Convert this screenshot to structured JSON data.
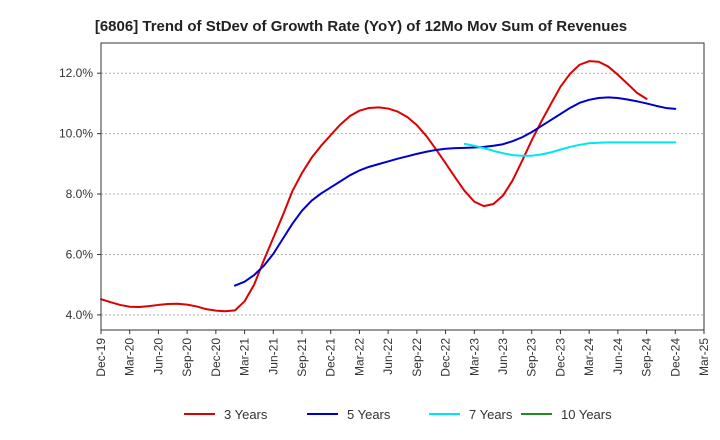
{
  "chart_data": {
    "type": "line",
    "title": "[6806]  Trend of StDev of Growth Rate (YoY) of 12Mo Mov Sum of Revenues",
    "xlabel": "",
    "ylabel": "",
    "x_ticks": [
      "Dec-19",
      "Mar-20",
      "Jun-20",
      "Sep-20",
      "Dec-20",
      "Mar-21",
      "Jun-21",
      "Sep-21",
      "Dec-21",
      "Mar-22",
      "Jun-22",
      "Sep-22",
      "Dec-22",
      "Mar-23",
      "Jun-23",
      "Sep-23",
      "Dec-23",
      "Mar-24",
      "Jun-24",
      "Sep-24",
      "Dec-24",
      "Mar-25"
    ],
    "y_ticks": [
      "4.0%",
      "6.0%",
      "8.0%",
      "10.0%",
      "12.0%"
    ],
    "y_tick_values": [
      4,
      6,
      8,
      10,
      12
    ],
    "ylim": [
      3.5,
      13.0
    ],
    "x_range_months": [
      0,
      63
    ],
    "grid": "horizontal dashed",
    "legend_position": "bottom",
    "series": [
      {
        "name": "3 Years",
        "color": "#dd0000",
        "x_months": [
          0,
          1,
          2,
          3,
          4,
          5,
          6,
          7,
          8,
          9,
          10,
          11,
          12,
          13,
          14,
          15,
          16,
          17,
          18,
          19,
          20,
          21,
          22,
          23,
          24,
          25,
          26,
          27,
          28,
          29,
          30,
          31,
          32,
          33,
          34,
          35,
          36,
          37,
          38,
          39,
          40,
          41,
          42,
          43,
          44,
          45,
          46,
          47,
          48,
          49,
          50,
          51,
          52,
          53,
          54,
          55,
          56,
          57,
          58,
          59,
          60
        ],
        "values": [
          4.52,
          4.42,
          4.33,
          4.27,
          4.26,
          4.29,
          4.33,
          4.36,
          4.37,
          4.34,
          4.28,
          4.19,
          4.14,
          4.12,
          4.15,
          4.45,
          5.0,
          5.8,
          6.55,
          7.3,
          8.1,
          8.7,
          9.2,
          9.6,
          9.95,
          10.3,
          10.58,
          10.76,
          10.85,
          10.87,
          10.83,
          10.73,
          10.55,
          10.28,
          9.92,
          9.48,
          9.02,
          8.55,
          8.1,
          7.75,
          7.6,
          7.67,
          7.95,
          8.45,
          9.1,
          9.78,
          10.4,
          10.98,
          11.55,
          11.98,
          12.28,
          12.4,
          12.38,
          12.22,
          11.95,
          11.65,
          11.35,
          11.15,
          null,
          null,
          null
        ],
        "values_trimmed_note": ""
      },
      {
        "name": "5 Years",
        "color": "#0000cc",
        "x_months": [
          14,
          15,
          16,
          17,
          18,
          19,
          20,
          21,
          22,
          23,
          24,
          25,
          26,
          27,
          28,
          29,
          30,
          31,
          32,
          33,
          34,
          35,
          36,
          37,
          38,
          39,
          40,
          41,
          42,
          43,
          44,
          45,
          46,
          47,
          48,
          49,
          50,
          51,
          52,
          53,
          54,
          55,
          56,
          57,
          58,
          59,
          60
        ],
        "values": [
          4.97,
          5.1,
          5.32,
          5.62,
          6.02,
          6.52,
          7.02,
          7.45,
          7.78,
          8.02,
          8.22,
          8.42,
          8.62,
          8.78,
          8.9,
          8.99,
          9.08,
          9.17,
          9.25,
          9.33,
          9.4,
          9.46,
          9.5,
          9.52,
          9.53,
          9.54,
          9.56,
          9.6,
          9.65,
          9.75,
          9.88,
          10.05,
          10.25,
          10.45,
          10.65,
          10.85,
          11.02,
          11.12,
          11.18,
          11.2,
          11.18,
          11.13,
          11.07,
          11.0,
          10.92,
          10.85,
          10.82
        ]
      },
      {
        "name": "7 Years",
        "color": "#00e5ee",
        "x_months": [
          38,
          39,
          40,
          41,
          42,
          43,
          44,
          45,
          46,
          47,
          48,
          49,
          50,
          51,
          52,
          53,
          54,
          55,
          56,
          57,
          58,
          59,
          60
        ],
        "values": [
          9.66,
          9.6,
          9.52,
          9.43,
          9.35,
          9.29,
          9.27,
          9.27,
          9.31,
          9.38,
          9.47,
          9.56,
          9.63,
          9.68,
          9.7,
          9.71,
          9.71,
          9.71,
          9.71,
          9.71,
          9.71,
          9.71,
          9.71
        ]
      },
      {
        "name": "10 Years",
        "color": "#228b22",
        "x_months": [],
        "values": []
      }
    ]
  }
}
